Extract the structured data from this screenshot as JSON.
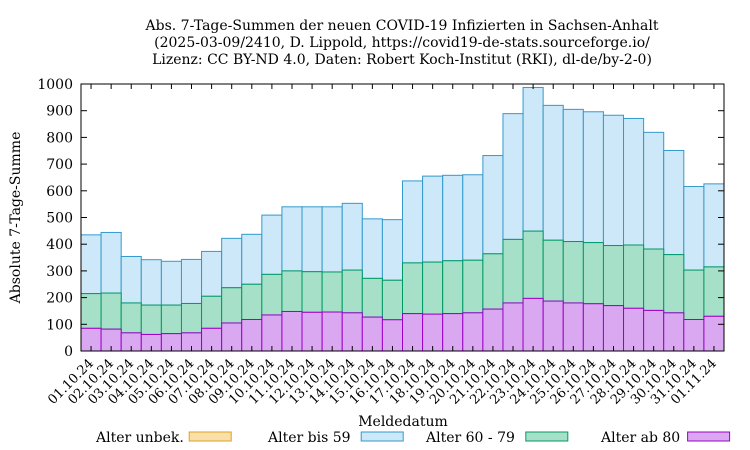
{
  "chart_data": {
    "type": "bar",
    "stacked": true,
    "title_lines": [
      "Abs. 7-Tage-Summen der neuen COVID-19 Infizierten in Sachsen-Anhalt",
      "(2025-03-09/2410, D. Lippold, https://covid19-de-stats.sourceforge.io/",
      "Lizenz: CC BY-ND 4.0, Daten: Robert Koch-Institut (RKI), dl-de/by-2-0)"
    ],
    "xlabel": "Meldedatum",
    "ylabel": "Absolute 7-Tage-Summe",
    "ylim": [
      0,
      1000
    ],
    "yticks": [
      0,
      100,
      200,
      300,
      400,
      500,
      600,
      700,
      800,
      900,
      1000
    ],
    "grid": false,
    "legend_position": "bottom",
    "categories": [
      "01.10.24",
      "02.10.24",
      "03.10.24",
      "04.10.24",
      "05.10.24",
      "06.10.24",
      "07.10.24",
      "08.10.24",
      "09.10.24",
      "10.10.24",
      "11.10.24",
      "12.10.24",
      "13.10.24",
      "14.10.24",
      "15.10.24",
      "16.10.24",
      "17.10.24",
      "18.10.24",
      "19.10.24",
      "20.10.24",
      "21.10.24",
      "22.10.24",
      "23.10.24",
      "24.10.24",
      "25.10.24",
      "26.10.24",
      "27.10.24",
      "28.10.24",
      "29.10.24",
      "30.10.24",
      "31.10.24",
      "01.11.24"
    ],
    "series": [
      {
        "name": "Alter ab 80",
        "color": "#d9a8f0",
        "edge": "#9c00c8",
        "values": [
          85,
          82,
          68,
          62,
          65,
          68,
          85,
          105,
          118,
          135,
          148,
          145,
          146,
          143,
          127,
          117,
          140,
          138,
          140,
          143,
          157,
          180,
          197,
          187,
          180,
          177,
          170,
          160,
          152,
          143,
          118,
          130
        ]
      },
      {
        "name": "Alter 60 - 79",
        "color": "#a7e0c8",
        "edge": "#009966",
        "values": [
          130,
          135,
          112,
          110,
          107,
          110,
          120,
          132,
          132,
          152,
          152,
          152,
          150,
          160,
          145,
          148,
          190,
          195,
          198,
          197,
          207,
          238,
          252,
          228,
          230,
          229,
          225,
          237,
          230,
          218,
          185,
          185
        ]
      },
      {
        "name": "Alter bis 59",
        "color": "#cde8f8",
        "edge": "#3399cc",
        "values": [
          220,
          227,
          174,
          170,
          164,
          165,
          168,
          185,
          187,
          222,
          240,
          243,
          244,
          250,
          223,
          227,
          307,
          322,
          320,
          320,
          368,
          471,
          538,
          505,
          495,
          490,
          488,
          474,
          437,
          390,
          313,
          311
        ]
      },
      {
        "name": "Alter unbek.",
        "color": "#f8e0a8",
        "edge": "#e0a020",
        "values": [
          0,
          0,
          0,
          0,
          0,
          0,
          0,
          0,
          0,
          0,
          0,
          0,
          0,
          0,
          0,
          0,
          0,
          0,
          0,
          0,
          0,
          0,
          0,
          0,
          0,
          0,
          0,
          0,
          0,
          0,
          0,
          0
        ]
      }
    ],
    "legend_order": [
      "Alter unbek.",
      "Alter bis 59",
      "Alter 60 - 79",
      "Alter ab 80"
    ]
  }
}
